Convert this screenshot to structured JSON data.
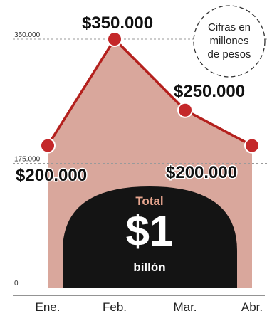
{
  "chart_data": {
    "type": "area",
    "categories": [
      "Ene.",
      "Feb.",
      "Mar.",
      "Abr."
    ],
    "values": [
      200000,
      350000,
      250000,
      200000
    ],
    "value_labels": [
      "$200.000",
      "$350.000",
      "$250.000",
      "$200.000"
    ],
    "y_ticks": [
      0,
      175000,
      350000
    ],
    "y_tick_labels": [
      "0",
      "175.000",
      "350.000"
    ],
    "ylim": [
      0,
      350000
    ],
    "annotation": "Cifras en millones de pesos",
    "annotation_lines": [
      "Cifras en",
      "millones",
      "de pesos"
    ],
    "total": {
      "label": "Total",
      "value": "$1",
      "unit": "billón"
    },
    "colors": {
      "area": "#d9a79c",
      "line": "#b4201d",
      "marker": "#c4282a",
      "dome": "#141414"
    }
  }
}
